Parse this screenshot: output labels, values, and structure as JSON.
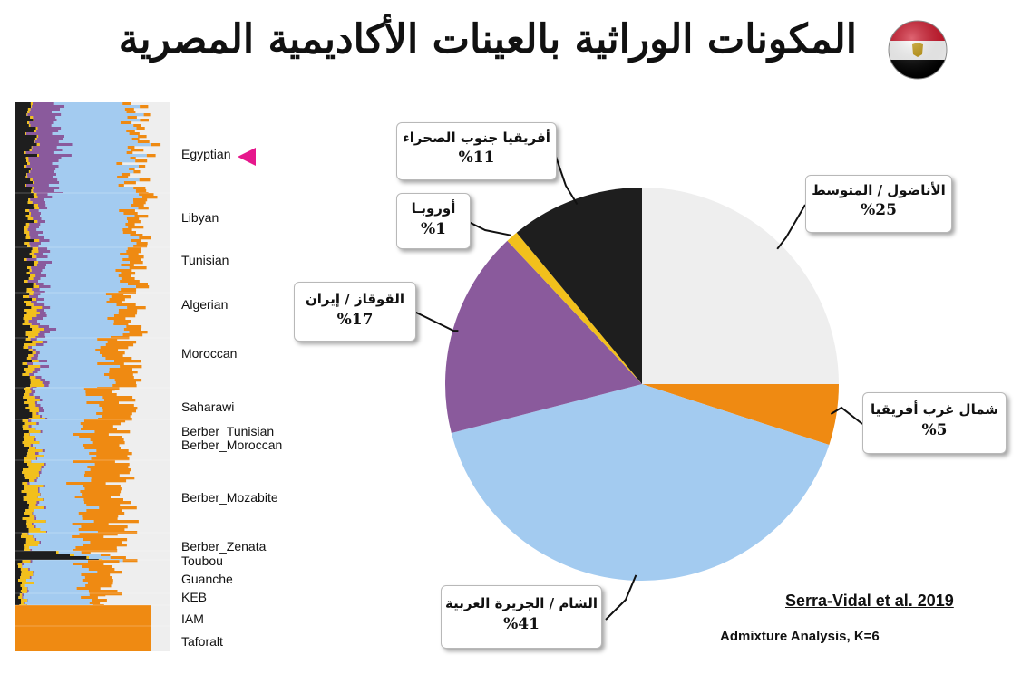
{
  "title": "المكونات الوراثية بالعينات الأكاديمية المصرية",
  "flag": {
    "icon": "egypt-flag-icon",
    "colors": [
      "#ce1126",
      "#ffffff",
      "#000000"
    ],
    "emblem": "#c09300"
  },
  "citation": "Serra-Vidal et al. 2019",
  "method": "Admixture Analysis, K=6",
  "admixture": {
    "components": [
      {
        "key": "black",
        "color": "#1e1e1e"
      },
      {
        "key": "yellow",
        "color": "#f2c01c"
      },
      {
        "key": "purple",
        "color": "#8a5a9c"
      },
      {
        "key": "lightblue",
        "color": "#a3cbf0"
      },
      {
        "key": "orange",
        "color": "#ef8a12"
      },
      {
        "key": "lightgray",
        "color": "#eeeeee"
      }
    ],
    "highlight": "Egyptian",
    "populations": [
      {
        "name": "Egyptian"
      },
      {
        "name": "Libyan"
      },
      {
        "name": "Tunisian"
      },
      {
        "name": "Algerian"
      },
      {
        "name": "Moroccan"
      },
      {
        "name": "Saharawi"
      },
      {
        "name": "Berber_Tunisian"
      },
      {
        "name": "Berber_Moroccan"
      },
      {
        "name": "Berber_Mozabite"
      },
      {
        "name": "Berber_Zenata"
      },
      {
        "name": "Toubou"
      },
      {
        "name": "Guanche"
      },
      {
        "name": "KEB"
      },
      {
        "name": "IAM"
      },
      {
        "name": "Taforalt"
      }
    ]
  },
  "chart_data": {
    "type": "pie",
    "slices": [
      {
        "label": "الأناضول / المتوسط",
        "value": 25,
        "pct_text": "%25",
        "color": "#eeeeee"
      },
      {
        "label": "شمال غرب أفريقيا",
        "value": 5,
        "pct_text": "%5",
        "color": "#ef8a12"
      },
      {
        "label": "الشام / الجزيرة العربية",
        "value": 41,
        "pct_text": "%41",
        "color": "#a3cbf0"
      },
      {
        "label": "القوقاز / إيران",
        "value": 17,
        "pct_text": "%17",
        "color": "#8a5a9c"
      },
      {
        "label": "أوروبـا",
        "value": 1,
        "pct_text": "%1",
        "color": "#f2c01c"
      },
      {
        "label": "أفريقيا جنوب الصحراء",
        "value": 11,
        "pct_text": "%11",
        "color": "#1e1e1e"
      }
    ]
  }
}
